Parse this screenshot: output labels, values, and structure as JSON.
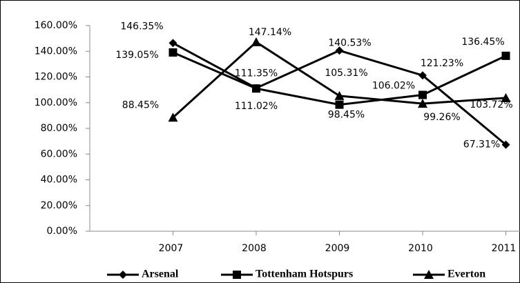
{
  "chart_data": {
    "type": "line",
    "categories": [
      "2007",
      "2008",
      "2009",
      "2010",
      "2011"
    ],
    "series": [
      {
        "name": "Arsenal",
        "color": "#000000",
        "marker": "diamond",
        "values": [
          146.35,
          111.35,
          140.53,
          121.23,
          67.31
        ],
        "value_labels": [
          "146.35%",
          "111.35%",
          "140.53%",
          "121.23%",
          "67.31%"
        ]
      },
      {
        "name": "Tottenham Hotspurs",
        "color": "#000000",
        "marker": "square",
        "values": [
          139.05,
          111.02,
          98.45,
          106.02,
          136.45
        ],
        "value_labels": [
          "139.05%",
          "111.02%",
          "98.45%",
          "106.02%",
          "136.45%"
        ]
      },
      {
        "name": "Everton",
        "color": "#000000",
        "marker": "triangle",
        "values": [
          88.45,
          147.14,
          105.31,
          99.26,
          103.72
        ],
        "value_labels": [
          "88.45%",
          "147.14%",
          "105.31%",
          "99.26%",
          "103.72%"
        ]
      }
    ],
    "ylim": [
      0,
      160
    ],
    "yticks": [
      {
        "value": 0,
        "label": "0.00%"
      },
      {
        "value": 20,
        "label": "20.00%"
      },
      {
        "value": 40,
        "label": "40.00%"
      },
      {
        "value": 60,
        "label": "60.00%"
      },
      {
        "value": 80,
        "label": "80.00%"
      },
      {
        "value": 100,
        "label": "100.00%"
      },
      {
        "value": 120,
        "label": "120.00%"
      },
      {
        "value": 140,
        "label": "140.00%"
      },
      {
        "value": 160,
        "label": "160.00%"
      }
    ],
    "grid": false,
    "legend": "bottom"
  }
}
